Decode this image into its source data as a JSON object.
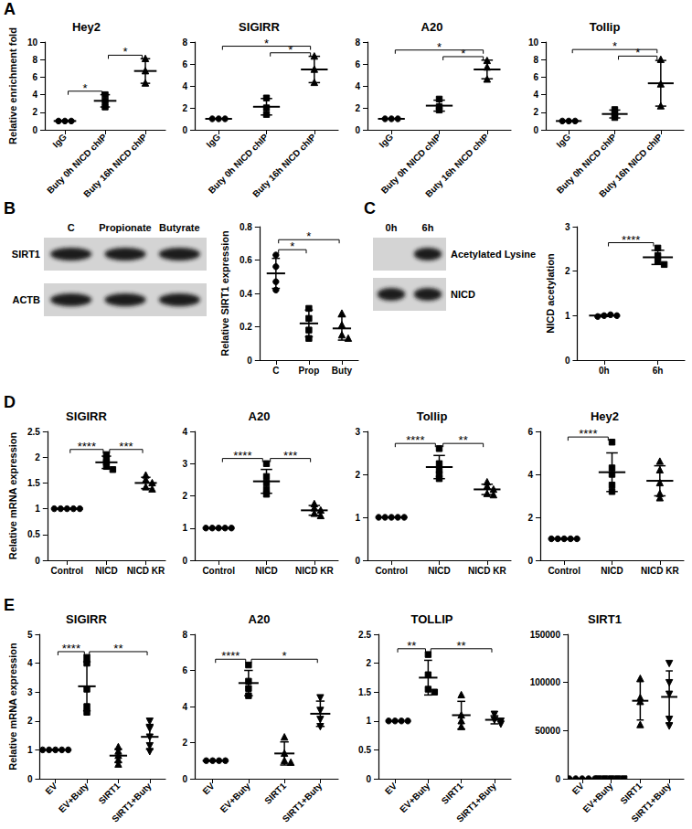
{
  "chart_data": [
    {
      "panel": "A",
      "type": "scatter",
      "title": "Hey2",
      "ylabel": "Relative enrichment fold",
      "categories": [
        "IgG",
        "Buty 0h NICD chIP",
        "Buty 16h NICD chIP"
      ],
      "values": [
        [
          1,
          1,
          1
        ],
        [
          2.6,
          3.3,
          4.0
        ],
        [
          5.3,
          6.7,
          8.1
        ]
      ],
      "means": [
        1,
        3.3,
        6.7
      ],
      "errors": [
        0,
        0.7,
        1.4
      ],
      "ylim": [
        0,
        10
      ],
      "yticks": [
        0,
        2,
        4,
        6,
        8,
        10
      ],
      "grid": false,
      "color": "#000000",
      "annotations": [
        {
          "from": "IgG",
          "to": "Buty 0h NICD chIP",
          "text": "*"
        },
        {
          "from": "Buty 0h NICD chIP",
          "to": "Buty 16h NICD chIP",
          "text": "*"
        }
      ]
    },
    {
      "panel": "A",
      "type": "scatter",
      "title": "SIGIRR",
      "categories": [
        "IgG",
        "Buty 0h NICD chIP",
        "Buty 16h NICD chIP"
      ],
      "values": [
        [
          1,
          1,
          1
        ],
        [
          1.4,
          2.0,
          2.9
        ],
        [
          4.3,
          5.5,
          6.7
        ]
      ],
      "means": [
        1,
        2.1,
        5.5
      ],
      "errors": [
        0,
        0.75,
        1.2
      ],
      "ylim": [
        0,
        8
      ],
      "yticks": [
        0,
        2,
        4,
        6,
        8
      ],
      "grid": false,
      "color": "#000000",
      "annotations": [
        {
          "from": "IgG",
          "to": "Buty 16h NICD chIP",
          "text": "*"
        },
        {
          "from": "Buty 0h NICD chIP",
          "to": "Buty 16h NICD chIP",
          "text": "*"
        }
      ]
    },
    {
      "panel": "A",
      "type": "scatter",
      "title": "A20",
      "categories": [
        "IgG",
        "Buty 0h NICD chIP",
        "Buty 16h NICD chIP"
      ],
      "values": [
        [
          1,
          1,
          1
        ],
        [
          1.8,
          2.1,
          2.8
        ],
        [
          4.6,
          5.7,
          6.3
        ]
      ],
      "means": [
        1,
        2.2,
        5.5
      ],
      "errors": [
        0,
        0.5,
        0.85
      ],
      "ylim": [
        0,
        8
      ],
      "yticks": [
        0,
        2,
        4,
        6,
        8
      ],
      "grid": false,
      "color": "#000000",
      "annotations": [
        {
          "from": "IgG",
          "to": "Buty 16h NICD chIP",
          "text": "*"
        },
        {
          "from": "Buty 0h NICD chIP",
          "to": "Buty 16h NICD chIP",
          "text": "*"
        }
      ]
    },
    {
      "panel": "A",
      "type": "scatter",
      "title": "Tollip",
      "categories": [
        "IgG",
        "Buty 0h NICD chIP",
        "Buty 16h NICD chIP"
      ],
      "values": [
        [
          1,
          1,
          1
        ],
        [
          1.4,
          1.8,
          2.3
        ],
        [
          2.7,
          5.2,
          8.0
        ]
      ],
      "means": [
        1,
        1.8,
        5.3
      ],
      "errors": [
        0,
        0.45,
        2.6
      ],
      "ylim": [
        0,
        10
      ],
      "yticks": [
        0,
        2,
        4,
        6,
        8,
        10
      ],
      "grid": false,
      "color": "#000000",
      "annotations": [
        {
          "from": "IgG",
          "to": "Buty 16h NICD chIP",
          "text": "*"
        },
        {
          "from": "Buty 0h NICD chIP",
          "to": "Buty 16h NICD chIP",
          "text": "*"
        }
      ]
    },
    {
      "panel": "B",
      "type": "scatter",
      "ylabel": "Relative SIRT1 expression",
      "categories": [
        "C",
        "Prop",
        "Buty"
      ],
      "values": [
        [
          0.63,
          0.56,
          0.47,
          0.42
        ],
        [
          0.31,
          0.25,
          0.18,
          0.13
        ],
        [
          0.28,
          0.21,
          0.15,
          0.13
        ]
      ],
      "means": [
        0.52,
        0.22,
        0.19
      ],
      "errors": [
        0.09,
        0.08,
        0.07
      ],
      "ylim": [
        0,
        0.8
      ],
      "yticks": [
        0,
        0.2,
        0.4,
        0.6,
        0.8
      ],
      "grid": false,
      "color": "#000000",
      "annotations": [
        {
          "from": "C",
          "to": "Prop",
          "text": "*"
        },
        {
          "from": "C",
          "to": "Buty",
          "text": "*"
        }
      ]
    },
    {
      "panel": "C",
      "type": "scatter",
      "ylabel": "NICD acetylation",
      "categories": [
        "0h",
        "6h"
      ],
      "values": [
        [
          1.0,
          1.02,
          0.98,
          1.0
        ],
        [
          2.52,
          2.35,
          2.22,
          2.15
        ]
      ],
      "means": [
        1.0,
        2.31
      ],
      "errors": [
        0.02,
        0.16
      ],
      "ylim": [
        0,
        3
      ],
      "yticks": [
        0,
        1,
        2,
        3
      ],
      "grid": false,
      "color": "#000000",
      "annotations": [
        {
          "from": "0h",
          "to": "6h",
          "text": "****"
        }
      ]
    },
    {
      "panel": "D",
      "type": "scatter",
      "title": "SIGIRR",
      "ylabel": "Relative mRNA expression",
      "categories": [
        "Control",
        "NICD",
        "NICD KR"
      ],
      "values": [
        [
          1,
          1,
          1,
          1,
          1
        ],
        [
          2.05,
          1.97,
          1.9,
          1.82,
          1.76
        ],
        [
          1.65,
          1.56,
          1.5,
          1.42,
          1.38
        ]
      ],
      "means": [
        1,
        1.9,
        1.5
      ],
      "errors": [
        0,
        0.12,
        0.11
      ],
      "ylim": [
        0,
        2.5
      ],
      "yticks": [
        0,
        0.5,
        1,
        1.5,
        2,
        2.5
      ],
      "grid": false,
      "color": "#000000",
      "annotations": [
        {
          "from": "Control",
          "to": "NICD",
          "text": "****"
        },
        {
          "from": "NICD",
          "to": "NICD KR",
          "text": "***"
        }
      ]
    },
    {
      "panel": "D",
      "type": "scatter",
      "title": "A20",
      "categories": [
        "Control",
        "NICD",
        "NICD KR"
      ],
      "values": [
        [
          1,
          1,
          1,
          1,
          1
        ],
        [
          3.0,
          2.6,
          2.4,
          2.2,
          2.05
        ],
        [
          1.75,
          1.62,
          1.55,
          1.45,
          1.38
        ]
      ],
      "means": [
        1,
        2.45,
        1.55
      ],
      "errors": [
        0,
        0.37,
        0.15
      ],
      "ylim": [
        0,
        4
      ],
      "yticks": [
        0,
        1,
        2,
        3,
        4
      ],
      "grid": false,
      "color": "#000000",
      "annotations": [
        {
          "from": "Control",
          "to": "NICD",
          "text": "****"
        },
        {
          "from": "NICD",
          "to": "NICD KR",
          "text": "***"
        }
      ]
    },
    {
      "panel": "D",
      "type": "scatter",
      "title": "Tollip",
      "categories": [
        "Control",
        "NICD",
        "NICD KR"
      ],
      "values": [
        [
          1,
          1,
          1,
          1,
          1
        ],
        [
          2.6,
          2.25,
          2.1,
          2.0,
          1.9
        ],
        [
          1.82,
          1.72,
          1.65,
          1.55,
          1.52
        ]
      ],
      "means": [
        1,
        2.17,
        1.65
      ],
      "errors": [
        0,
        0.27,
        0.12
      ],
      "ylim": [
        0,
        3
      ],
      "yticks": [
        0,
        1,
        2,
        3
      ],
      "grid": false,
      "color": "#000000",
      "annotations": [
        {
          "from": "Control",
          "to": "NICD",
          "text": "****"
        },
        {
          "from": "NICD",
          "to": "NICD KR",
          "text": "**"
        }
      ]
    },
    {
      "panel": "D",
      "type": "scatter",
      "title": "Hey2",
      "categories": [
        "Control",
        "NICD",
        "NICD KR"
      ],
      "values": [
        [
          1,
          1,
          1,
          1,
          1
        ],
        [
          5.5,
          4.3,
          4.0,
          3.5,
          3.2
        ],
        [
          4.6,
          4.2,
          3.6,
          3.1,
          2.9
        ]
      ],
      "means": [
        1,
        4.1,
        3.7
      ],
      "errors": [
        0,
        0.9,
        0.7
      ],
      "ylim": [
        0,
        6
      ],
      "yticks": [
        0,
        2,
        4,
        6
      ],
      "grid": false,
      "color": "#000000",
      "annotations": [
        {
          "from": "Control",
          "to": "NICD",
          "text": "****"
        }
      ]
    },
    {
      "panel": "E",
      "type": "scatter",
      "title": "SIGIRR",
      "ylabel": "Relative mRNA expression",
      "categories": [
        "EV",
        "EV+Buty",
        "SIRT1",
        "SIRT1+Buty"
      ],
      "values": [
        [
          1,
          1,
          1,
          1,
          1
        ],
        [
          4.2,
          4.0,
          3.1,
          2.5,
          2.3
        ],
        [
          1.1,
          0.95,
          0.8,
          0.65,
          0.5
        ],
        [
          2.0,
          1.75,
          1.45,
          1.15,
          0.95
        ]
      ],
      "means": [
        1,
        3.2,
        0.8,
        1.45
      ],
      "errors": [
        0,
        0.85,
        0.23,
        0.43
      ],
      "ylim": [
        0,
        5
      ],
      "yticks": [
        0,
        1,
        2,
        3,
        4,
        5
      ],
      "grid": false,
      "color": "#000000",
      "annotations": [
        {
          "from": "EV",
          "to": "EV+Buty",
          "text": "****"
        },
        {
          "from": "EV+Buty",
          "to": "SIRT1+Buty",
          "text": "**"
        }
      ]
    },
    {
      "panel": "E",
      "type": "scatter",
      "title": "A20",
      "categories": [
        "EV",
        "EV+Buty",
        "SIRT1",
        "SIRT1+Buty"
      ],
      "values": [
        [
          1,
          1,
          1,
          1
        ],
        [
          6.3,
          5.4,
          5.0,
          4.6
        ],
        [
          2.3,
          1.4,
          1.0,
          0.9
        ],
        [
          4.5,
          3.8,
          3.3,
          2.9
        ]
      ],
      "means": [
        1,
        5.3,
        1.4,
        3.6
      ],
      "errors": [
        0,
        0.7,
        0.64,
        0.7
      ],
      "ylim": [
        0,
        8
      ],
      "yticks": [
        0,
        2,
        4,
        6,
        8
      ],
      "grid": false,
      "color": "#000000",
      "annotations": [
        {
          "from": "EV",
          "to": "EV+Buty",
          "text": "****"
        },
        {
          "from": "EV+Buty",
          "to": "SIRT1+Buty",
          "text": "*"
        }
      ]
    },
    {
      "panel": "E",
      "type": "scatter",
      "title": "TOLLIP",
      "categories": [
        "EV",
        "EV+Buty",
        "SIRT1",
        "SIRT1+Buty"
      ],
      "values": [
        [
          1,
          1,
          1,
          1
        ],
        [
          2.15,
          1.8,
          1.55,
          1.5
        ],
        [
          1.45,
          1.1,
          1.0,
          0.9
        ],
        [
          1.12,
          1.02,
          1.0,
          0.95
        ]
      ],
      "means": [
        1,
        1.75,
        1.1,
        1.02
      ],
      "errors": [
        0,
        0.3,
        0.24,
        0.07
      ],
      "ylim": [
        0,
        2.5
      ],
      "yticks": [
        0,
        0.5,
        1,
        1.5,
        2,
        2.5
      ],
      "grid": false,
      "color": "#000000",
      "annotations": [
        {
          "from": "EV",
          "to": "EV+Buty",
          "text": "**"
        },
        {
          "from": "EV+Buty",
          "to": "SIRT1+Buty",
          "text": "**"
        }
      ]
    },
    {
      "panel": "E",
      "type": "scatter",
      "title": "SIRT1",
      "categories": [
        "EV",
        "EV+Buty",
        "SIRT1",
        "SIRT1+Buty"
      ],
      "values": [
        [
          1,
          1,
          1,
          1,
          1
        ],
        [
          1.2,
          1.1,
          1.0,
          0.9,
          0.8
        ],
        [
          104000,
          84000,
          80000,
          56000
        ],
        [
          120000,
          100000,
          88000,
          62000,
          55000
        ]
      ],
      "means": [
        1,
        1,
        81000,
        85000
      ],
      "errors": [
        0,
        0.15,
        20000,
        27000
      ],
      "ylim": [
        0,
        150000
      ],
      "yticks": [
        0,
        50000,
        100000,
        150000
      ],
      "grid": false,
      "color": "#000000"
    }
  ],
  "blots": [
    {
      "panel": "B",
      "lanes": [
        "C",
        "Propionate",
        "Butyrate"
      ],
      "bands": [
        {
          "label": "SIRT1",
          "present": [
            true,
            true,
            true
          ]
        },
        {
          "label": "ACTB",
          "present": [
            true,
            true,
            true
          ]
        }
      ]
    },
    {
      "panel": "C",
      "lanes": [
        "0h",
        "6h"
      ],
      "bands": [
        {
          "label": "Acetylated Lysine",
          "present": [
            false,
            true
          ]
        },
        {
          "label": "NICD",
          "present": [
            true,
            true
          ]
        }
      ]
    }
  ]
}
